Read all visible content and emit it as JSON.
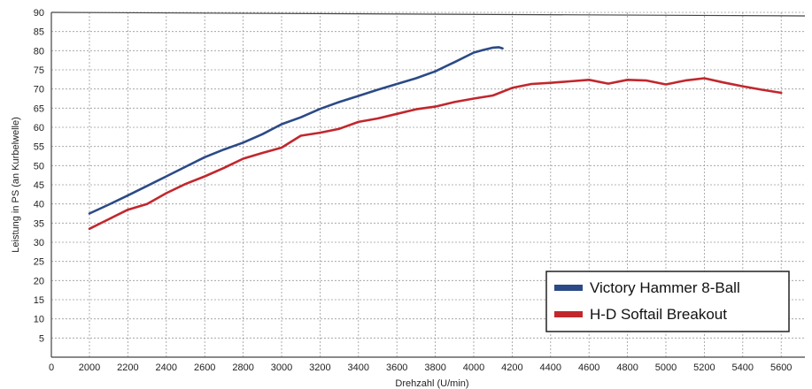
{
  "chart_data": {
    "type": "line",
    "title": "",
    "xlabel": "Drehzahl (U/min)",
    "ylabel": "Leistung in PS (an Kurbelwelle)",
    "xlim": [
      0,
      6000
    ],
    "ylim": [
      0,
      90
    ],
    "x_ticks": [
      0,
      2000,
      2200,
      2400,
      2600,
      2800,
      3000,
      3200,
      3400,
      3600,
      3800,
      4000,
      4200,
      4400,
      4600,
      4800,
      5000,
      5200,
      5400,
      5600
    ],
    "y_ticks": [
      5,
      10,
      15,
      20,
      25,
      30,
      35,
      40,
      45,
      50,
      55,
      60,
      65,
      70,
      75,
      80,
      85,
      90
    ],
    "grid": true,
    "legend_position": "bottom-right",
    "series": [
      {
        "name": "Victory Hammer 8-Ball",
        "color": "#2b4a86",
        "x": [
          2000,
          2100,
          2200,
          2300,
          2400,
          2500,
          2600,
          2700,
          2800,
          2900,
          3000,
          3100,
          3200,
          3300,
          3400,
          3500,
          3600,
          3700,
          3800,
          3900,
          4000,
          4050,
          4100,
          4130,
          4150
        ],
        "y": [
          37.5,
          39.8,
          42.2,
          44.7,
          47.2,
          49.7,
          52.2,
          54.2,
          56.0,
          58.2,
          60.8,
          62.6,
          64.8,
          66.6,
          68.2,
          69.8,
          71.3,
          72.8,
          74.6,
          77.0,
          79.5,
          80.2,
          80.8,
          80.9,
          80.6
        ]
      },
      {
        "name": "H-D Softail Breakout",
        "color": "#c1272d",
        "x": [
          2000,
          2100,
          2200,
          2300,
          2400,
          2500,
          2600,
          2700,
          2800,
          2900,
          3000,
          3100,
          3200,
          3300,
          3400,
          3500,
          3600,
          3700,
          3800,
          3900,
          4000,
          4100,
          4200,
          4300,
          4400,
          4500,
          4600,
          4700,
          4800,
          4900,
          5000,
          5100,
          5200,
          5300,
          5400,
          5500,
          5600
        ],
        "y": [
          33.5,
          36.0,
          38.5,
          40.0,
          42.8,
          45.2,
          47.2,
          49.4,
          51.8,
          53.3,
          54.7,
          57.8,
          58.6,
          59.6,
          61.4,
          62.3,
          63.5,
          64.7,
          65.4,
          66.6,
          67.5,
          68.3,
          70.3,
          71.3,
          71.6,
          72.0,
          72.4,
          71.4,
          72.4,
          72.2,
          71.2,
          72.2,
          72.8,
          71.7,
          70.7,
          69.8,
          69.0
        ]
      }
    ]
  }
}
